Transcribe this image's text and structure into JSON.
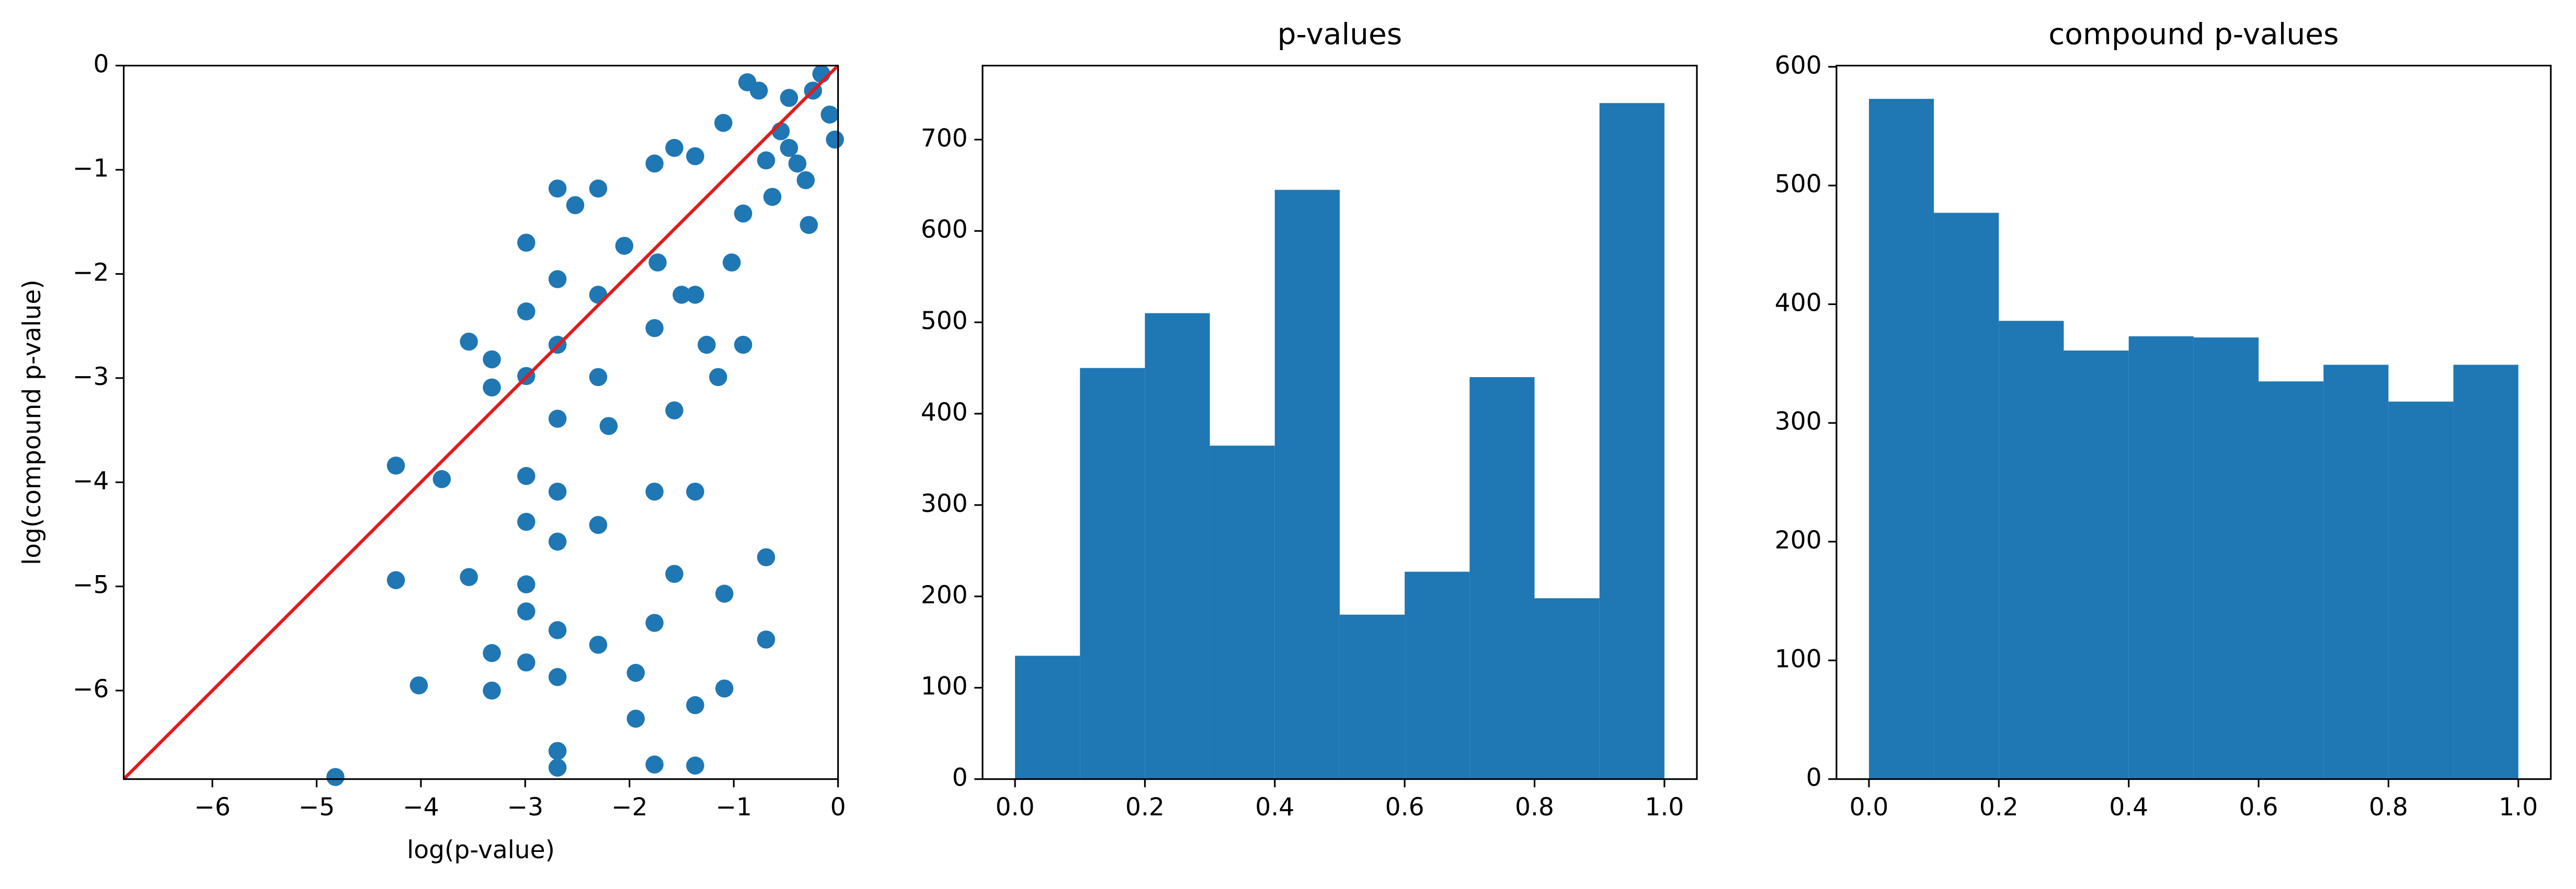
{
  "chart_data": [
    {
      "type": "scatter",
      "xlabel": "log(p-value)",
      "ylabel": "log(compound p-value)",
      "color": "#1f77b4",
      "identity_line": true,
      "identity_color": "#e41a1c",
      "x": [
        -4.24,
        -4.24,
        -3.8,
        -4.02,
        -4.82,
        -3.54,
        -3.54,
        -3.32,
        -3.32,
        -3.32,
        -3.32,
        -2.99,
        -2.99,
        -2.99,
        -2.99,
        -2.99,
        -2.99,
        -2.99,
        -2.99,
        -2.69,
        -2.69,
        -2.69,
        -2.69,
        -2.69,
        -2.69,
        -2.69,
        -2.69,
        -2.69,
        -2.69,
        -2.3,
        -2.3,
        -2.3,
        -2.3,
        -2.3,
        -1.94,
        -1.94,
        -1.76,
        -1.76,
        -1.76,
        -1.76,
        -1.76,
        -1.57,
        -1.57,
        -1.57,
        -1.37,
        -1.37,
        -1.37,
        -1.37,
        -1.37,
        -1.09,
        -1.09,
        -1.15,
        -0.91,
        -0.91,
        -0.69,
        -0.69,
        -0.69,
        -0.55,
        -0.47,
        -0.39,
        -0.28,
        -0.24,
        -0.16,
        -0.08,
        -0.03,
        -0.87,
        -1.1,
        -0.76,
        -2.52,
        -2.05,
        -2.2,
        -1.73,
        -1.5,
        -1.26,
        -1.02,
        -0.63,
        -0.31,
        -0.47
      ],
      "values": [
        -3.84,
        -4.94,
        -3.97,
        -5.95,
        -6.83,
        -2.65,
        -4.91,
        -2.82,
        -3.09,
        -5.64,
        -6.0,
        -1.7,
        -2.36,
        -2.98,
        -3.94,
        -4.38,
        -4.98,
        -5.24,
        -5.73,
        -1.18,
        -2.05,
        -2.68,
        -3.39,
        -4.09,
        -4.57,
        -5.42,
        -5.87,
        -6.58,
        -6.74,
        -1.18,
        -2.2,
        -2.99,
        -4.41,
        -5.56,
        -5.83,
        -6.27,
        -0.94,
        -2.52,
        -4.09,
        -5.35,
        -6.71,
        -0.79,
        -3.31,
        -4.88,
        -0.87,
        -2.2,
        -4.09,
        -6.14,
        -6.72,
        -5.98,
        -5.07,
        -2.99,
        -1.42,
        -2.68,
        -0.91,
        -4.72,
        -5.51,
        -0.63,
        -0.31,
        -0.94,
        -1.53,
        -0.24,
        -0.08,
        -0.47,
        -0.71,
        -0.16,
        -0.55,
        -0.24,
        -1.34,
        -1.73,
        -3.46,
        -1.89,
        -2.2,
        -2.68,
        -1.89,
        -1.26,
        -1.1,
        -0.79
      ],
      "xlim": [
        -6.85,
        0
      ],
      "ylim": [
        -6.85,
        0
      ],
      "xticks": [
        {
          "value": -6,
          "label": "−6"
        },
        {
          "value": -5,
          "label": "−5"
        },
        {
          "value": -4,
          "label": "−4"
        },
        {
          "value": -3,
          "label": "−3"
        },
        {
          "value": -2,
          "label": "−2"
        },
        {
          "value": -1,
          "label": "−1"
        },
        0
      ],
      "yticks": [
        {
          "value": -6,
          "label": "−6"
        },
        {
          "value": -5,
          "label": "−5"
        },
        {
          "value": -4,
          "label": "−4"
        },
        {
          "value": -3,
          "label": "−3"
        },
        {
          "value": -2,
          "label": "−2"
        },
        {
          "value": -1,
          "label": "−1"
        },
        0
      ]
    },
    {
      "type": "histogram",
      "title": "p-values",
      "color": "#1f77b4",
      "bins": [
        0,
        0.1,
        0.2,
        0.3,
        0.4,
        0.5,
        0.6,
        0.7,
        0.8,
        0.9,
        1.0
      ],
      "values": [
        135,
        450,
        510,
        365,
        645,
        180,
        227,
        440,
        198,
        740
      ],
      "xlim": [
        -0.05,
        1.05
      ],
      "ylim": [
        0,
        781
      ],
      "xticks": [
        {
          "value": 0,
          "label": "0.0"
        },
        0.2,
        0.4,
        0.6,
        0.8,
        {
          "value": 1,
          "label": "1.0"
        }
      ],
      "yticks": [
        0,
        100,
        200,
        300,
        400,
        500,
        600,
        700
      ]
    },
    {
      "type": "histogram",
      "title": "compound p-values",
      "color": "#1f77b4",
      "bins": [
        0,
        0.1,
        0.2,
        0.3,
        0.4,
        0.5,
        0.6,
        0.7,
        0.8,
        0.9,
        1.0
      ],
      "values": [
        573,
        477,
        386,
        361,
        373,
        372,
        335,
        349,
        318,
        349
      ],
      "xlim": [
        -0.05,
        1.05
      ],
      "ylim": [
        0,
        601
      ],
      "xticks": [
        {
          "value": 0,
          "label": "0.0"
        },
        0.2,
        0.4,
        0.6,
        0.8,
        {
          "value": 1,
          "label": "1.0"
        }
      ],
      "yticks": [
        0,
        100,
        200,
        300,
        400,
        500,
        600
      ]
    }
  ]
}
